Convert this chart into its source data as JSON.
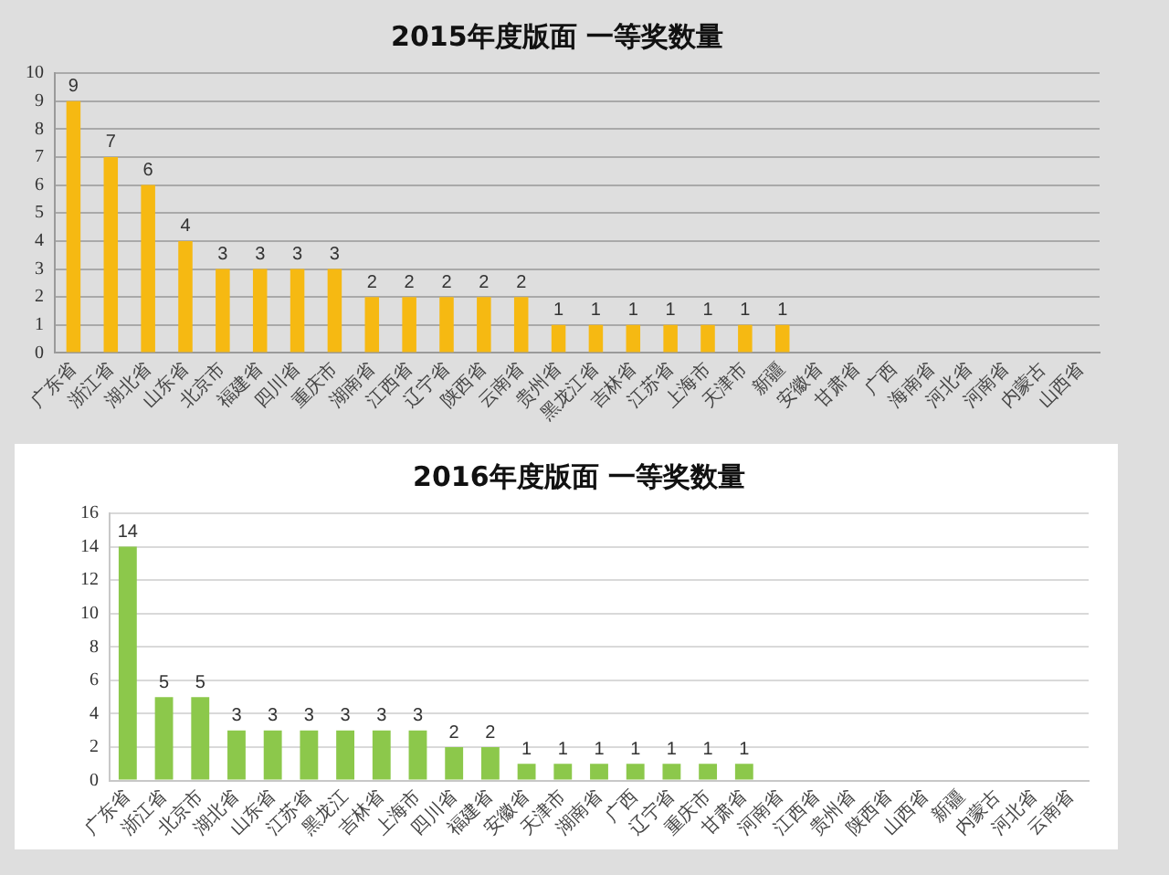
{
  "chart_data": [
    {
      "type": "bar",
      "title": "2015年度版面 一等奖数量",
      "categories": [
        "广东省",
        "浙江省",
        "湖北省",
        "山东省",
        "北京市",
        "福建省",
        "四川省",
        "重庆市",
        "湖南省",
        "江西省",
        "辽宁省",
        "陕西省",
        "云南省",
        "贵州省",
        "黑龙江省",
        "吉林省",
        "江苏省",
        "上海市",
        "天津市",
        "新疆",
        "安徽省",
        "甘肃省",
        "广西",
        "海南省",
        "河北省",
        "河南省",
        "内蒙古",
        "山西省"
      ],
      "values": [
        9,
        7,
        6,
        4,
        3,
        3,
        3,
        3,
        2,
        2,
        2,
        2,
        2,
        1,
        1,
        1,
        1,
        1,
        1,
        1,
        0,
        0,
        0,
        0,
        0,
        0,
        0,
        0
      ],
      "value_labels": [
        "9",
        "7",
        "6",
        "4",
        "3",
        "3",
        "3",
        "3",
        "2",
        "2",
        "2",
        "2",
        "2",
        "1",
        "1",
        "1",
        "1",
        "1",
        "1",
        "1",
        null,
        null,
        null,
        null,
        null,
        null,
        null,
        null
      ],
      "color": "#f6b912",
      "ylim": [
        0,
        10
      ],
      "yticks": [
        0,
        1,
        2,
        3,
        4,
        5,
        6,
        7,
        8,
        9,
        10
      ],
      "grid": "y"
    },
    {
      "type": "bar",
      "title": "2016年度版面 一等奖数量",
      "categories": [
        "广东省",
        "浙江省",
        "北京市",
        "湖北省",
        "山东省",
        "江苏省",
        "黑龙江",
        "吉林省",
        "上海市",
        "四川省",
        "福建省",
        "安徽省",
        "天津市",
        "湖南省",
        "广西",
        "辽宁省",
        "重庆市",
        "甘肃省",
        "河南省",
        "江西省",
        "贵州省",
        "陕西省",
        "山西省",
        "新疆",
        "内蒙古",
        "河北省",
        "云南省"
      ],
      "values": [
        14,
        5,
        5,
        3,
        3,
        3,
        3,
        3,
        3,
        2,
        2,
        1,
        1,
        1,
        1,
        1,
        1,
        1,
        0,
        0,
        0,
        0,
        0,
        0,
        0,
        0,
        0
      ],
      "value_labels": [
        "14",
        "5",
        "5",
        "3",
        "3",
        "3",
        "3",
        "3",
        "3",
        "2",
        "2",
        "1",
        "1",
        "1",
        "1",
        "1",
        "1",
        "1",
        null,
        null,
        null,
        null,
        null,
        null,
        null,
        null,
        null
      ],
      "color": "#8cc84b",
      "ylim": [
        0,
        16
      ],
      "yticks": [
        0,
        2,
        4,
        6,
        8,
        10,
        12,
        14,
        16
      ],
      "grid": "y"
    }
  ]
}
